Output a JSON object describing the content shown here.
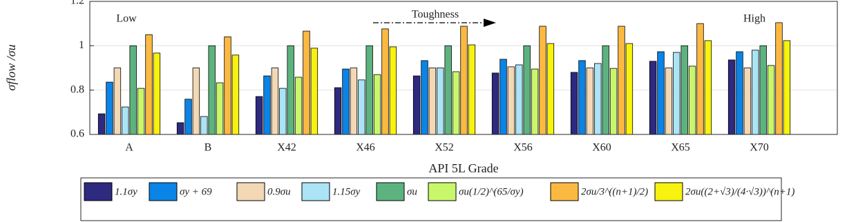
{
  "chart_data": {
    "type": "bar",
    "xlabel": "API 5L Grade",
    "ylabel": "σflow /σu",
    "annotations": [
      "Low",
      "Toughness",
      "High"
    ],
    "categories": [
      "A",
      "B",
      "X42",
      "X46",
      "X52",
      "X56",
      "X60",
      "X65",
      "X70"
    ],
    "ylim": [
      0.6,
      1.2
    ],
    "yticks": [
      0.6,
      0.8,
      1,
      1.2
    ],
    "grid": true,
    "series": [
      {
        "name": "1.1σy",
        "color": "#2e2a80",
        "values": [
          0.693,
          0.653,
          0.771,
          0.811,
          0.864,
          0.877,
          0.88,
          0.93,
          0.936
        ]
      },
      {
        "name": "σy + 69",
        "color": "#0a84e6",
        "values": [
          0.836,
          0.759,
          0.864,
          0.895,
          0.933,
          0.939,
          0.933,
          0.973,
          0.973
        ]
      },
      {
        "name": "0.9σu",
        "color": "#f3d8b6",
        "values": [
          0.9,
          0.9,
          0.9,
          0.9,
          0.9,
          0.905,
          0.9,
          0.9,
          0.9
        ]
      },
      {
        "name": "1.15σy",
        "color": "#aae4f5",
        "values": [
          0.724,
          0.681,
          0.808,
          0.846,
          0.9,
          0.914,
          0.92,
          0.97,
          0.98
        ]
      },
      {
        "name": "σu",
        "color": "#5db37f",
        "values": [
          1,
          1,
          1,
          1,
          1,
          1,
          1,
          1,
          1
        ]
      },
      {
        "name": "σu(1/2)^(65/σy)",
        "color": "#c8f76c",
        "values": [
          0.808,
          0.833,
          0.858,
          0.87,
          0.883,
          0.895,
          0.898,
          0.908,
          0.911
        ]
      },
      {
        "name": "2σu/3^((n+1)/2)",
        "color": "#fbb942",
        "values": [
          1.05,
          1.04,
          1.066,
          1.076,
          1.088,
          1.088,
          1.088,
          1.1,
          1.104
        ]
      },
      {
        "name": "2σu((2+√3)/(4·√3))^(n+1)",
        "color": "#f7f20f",
        "values": [
          0.967,
          0.958,
          0.989,
          0.995,
          1.004,
          1.01,
          1.01,
          1.023,
          1.023
        ]
      }
    ]
  }
}
